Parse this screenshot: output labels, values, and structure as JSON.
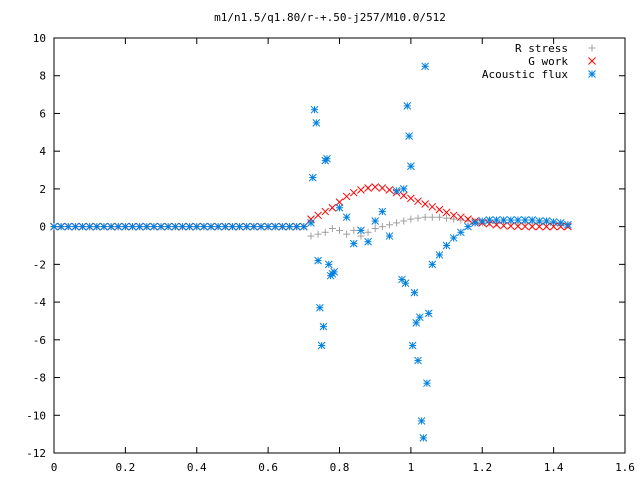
{
  "chart_data": {
    "type": "scatter",
    "title": "m1/n1.5/q1.80/r-+.50-j257/M10.0/512",
    "xlabel": "",
    "ylabel": "",
    "xlim": [
      0,
      1.6
    ],
    "ylim": [
      -12,
      10
    ],
    "x_ticks": [
      "0",
      "0.2",
      "0.4",
      "0.6",
      "0.8",
      "1",
      "1.2",
      "1.4",
      "1.6"
    ],
    "y_ticks": [
      "10",
      "8",
      "6",
      "4",
      "2",
      "0",
      "-2",
      "-4",
      "-6",
      "-8",
      "-10",
      "-12"
    ],
    "legend_position": "top-right",
    "grid": false,
    "series": [
      {
        "name": "R stress",
        "marker": "plus",
        "color": "#a0a0a0",
        "x": [
          0.0,
          0.02,
          0.04,
          0.06,
          0.08,
          0.1,
          0.12,
          0.14,
          0.16,
          0.18,
          0.2,
          0.22,
          0.24,
          0.26,
          0.28,
          0.3,
          0.32,
          0.34,
          0.36,
          0.38,
          0.4,
          0.42,
          0.44,
          0.46,
          0.48,
          0.5,
          0.52,
          0.54,
          0.56,
          0.58,
          0.6,
          0.62,
          0.64,
          0.66,
          0.68,
          0.7,
          0.72,
          0.74,
          0.76,
          0.78,
          0.8,
          0.82,
          0.84,
          0.86,
          0.88,
          0.9,
          0.92,
          0.94,
          0.96,
          0.98,
          1.0,
          1.02,
          1.04,
          1.06,
          1.08,
          1.1,
          1.12,
          1.14,
          1.16,
          1.18,
          1.2,
          1.22,
          1.24,
          1.26,
          1.28,
          1.3,
          1.32,
          1.34,
          1.36,
          1.38,
          1.4,
          1.42,
          1.44
        ],
        "y": [
          0,
          0,
          0,
          0,
          0,
          0,
          0,
          0,
          0,
          0,
          0,
          0,
          0,
          0,
          0,
          0,
          0,
          0,
          0,
          0,
          0,
          0,
          0,
          0,
          0,
          0,
          0,
          0,
          0,
          0,
          0,
          0,
          0,
          0,
          0,
          0,
          -0.5,
          -0.4,
          -0.3,
          -0.1,
          -0.2,
          -0.4,
          -0.2,
          -0.5,
          -0.3,
          -0.1,
          0.0,
          0.1,
          0.2,
          0.3,
          0.4,
          0.45,
          0.5,
          0.5,
          0.5,
          0.45,
          0.4,
          0.35,
          0.3,
          0.25,
          0.2,
          0.2,
          0.2,
          0.2,
          0.2,
          0.2,
          0.2,
          0.2,
          0.2,
          0.2,
          0.2,
          0.15,
          0.1
        ]
      },
      {
        "name": "G work",
        "marker": "cross",
        "color": "#ff0000",
        "x": [
          0.0,
          0.02,
          0.04,
          0.06,
          0.08,
          0.1,
          0.12,
          0.14,
          0.16,
          0.18,
          0.2,
          0.22,
          0.24,
          0.26,
          0.28,
          0.3,
          0.32,
          0.34,
          0.36,
          0.38,
          0.4,
          0.42,
          0.44,
          0.46,
          0.48,
          0.5,
          0.52,
          0.54,
          0.56,
          0.58,
          0.6,
          0.62,
          0.64,
          0.66,
          0.68,
          0.7,
          0.72,
          0.74,
          0.76,
          0.78,
          0.8,
          0.82,
          0.84,
          0.86,
          0.88,
          0.9,
          0.92,
          0.94,
          0.96,
          0.98,
          1.0,
          1.02,
          1.04,
          1.06,
          1.08,
          1.1,
          1.12,
          1.14,
          1.16,
          1.18,
          1.2,
          1.22,
          1.24,
          1.26,
          1.28,
          1.3,
          1.32,
          1.34,
          1.36,
          1.38,
          1.4,
          1.42,
          1.44
        ],
        "y": [
          0,
          0,
          0,
          0,
          0,
          0,
          0,
          0,
          0,
          0,
          0,
          0,
          0,
          0,
          0,
          0,
          0,
          0,
          0,
          0,
          0,
          0,
          0,
          0,
          0,
          0,
          0,
          0,
          0,
          0,
          0,
          0,
          0,
          0,
          0,
          0,
          0.4,
          0.6,
          0.8,
          1.0,
          1.3,
          1.6,
          1.8,
          1.95,
          2.05,
          2.1,
          2.05,
          1.95,
          1.8,
          1.65,
          1.5,
          1.35,
          1.2,
          1.05,
          0.9,
          0.75,
          0.6,
          0.5,
          0.4,
          0.3,
          0.2,
          0.15,
          0.1,
          0.05,
          0.03,
          0.02,
          0.01,
          0.0,
          0.0,
          0.0,
          0.0,
          0.0,
          0.0
        ]
      },
      {
        "name": "Acoustic flux",
        "marker": "star",
        "color": "#0080e0",
        "x": [
          0.0,
          0.02,
          0.04,
          0.06,
          0.08,
          0.1,
          0.12,
          0.14,
          0.16,
          0.18,
          0.2,
          0.22,
          0.24,
          0.26,
          0.28,
          0.3,
          0.32,
          0.34,
          0.36,
          0.38,
          0.4,
          0.42,
          0.44,
          0.46,
          0.48,
          0.5,
          0.52,
          0.54,
          0.56,
          0.58,
          0.6,
          0.62,
          0.64,
          0.66,
          0.68,
          0.7,
          0.72,
          0.725,
          0.73,
          0.735,
          0.74,
          0.745,
          0.75,
          0.755,
          0.76,
          0.765,
          0.77,
          0.775,
          0.78,
          0.785,
          0.8,
          0.82,
          0.84,
          0.86,
          0.88,
          0.9,
          0.92,
          0.94,
          0.96,
          0.975,
          0.98,
          0.985,
          0.99,
          0.995,
          1.0,
          1.005,
          1.01,
          1.015,
          1.02,
          1.025,
          1.03,
          1.035,
          1.04,
          1.045,
          1.05,
          1.06,
          1.08,
          1.1,
          1.12,
          1.14,
          1.16,
          1.18,
          1.2,
          1.22,
          1.24,
          1.26,
          1.28,
          1.3,
          1.32,
          1.34,
          1.36,
          1.38,
          1.4,
          1.42,
          1.44
        ],
        "y": [
          0,
          0,
          0,
          0,
          0,
          0,
          0,
          0,
          0,
          0,
          0,
          0,
          0,
          0,
          0,
          0,
          0,
          0,
          0,
          0,
          0,
          0,
          0,
          0,
          0,
          0,
          0,
          0,
          0,
          0,
          0,
          0,
          0,
          0,
          0,
          0,
          0.2,
          2.6,
          6.2,
          5.5,
          -1.8,
          -4.3,
          -6.3,
          -5.3,
          3.5,
          3.6,
          -2.0,
          -2.6,
          -2.5,
          -2.4,
          1.0,
          0.5,
          -0.9,
          -0.2,
          -0.8,
          0.3,
          0.8,
          -0.5,
          1.9,
          -2.8,
          2.0,
          -3.0,
          6.4,
          4.8,
          3.2,
          -6.3,
          -3.5,
          -5.1,
          -7.1,
          -4.8,
          -10.3,
          -11.2,
          8.5,
          -8.3,
          -4.6,
          -2.0,
          -1.5,
          -1.0,
          -0.6,
          -0.3,
          0.0,
          0.2,
          0.3,
          0.35,
          0.35,
          0.35,
          0.35,
          0.35,
          0.35,
          0.35,
          0.3,
          0.3,
          0.25,
          0.2,
          0.1
        ]
      }
    ]
  }
}
